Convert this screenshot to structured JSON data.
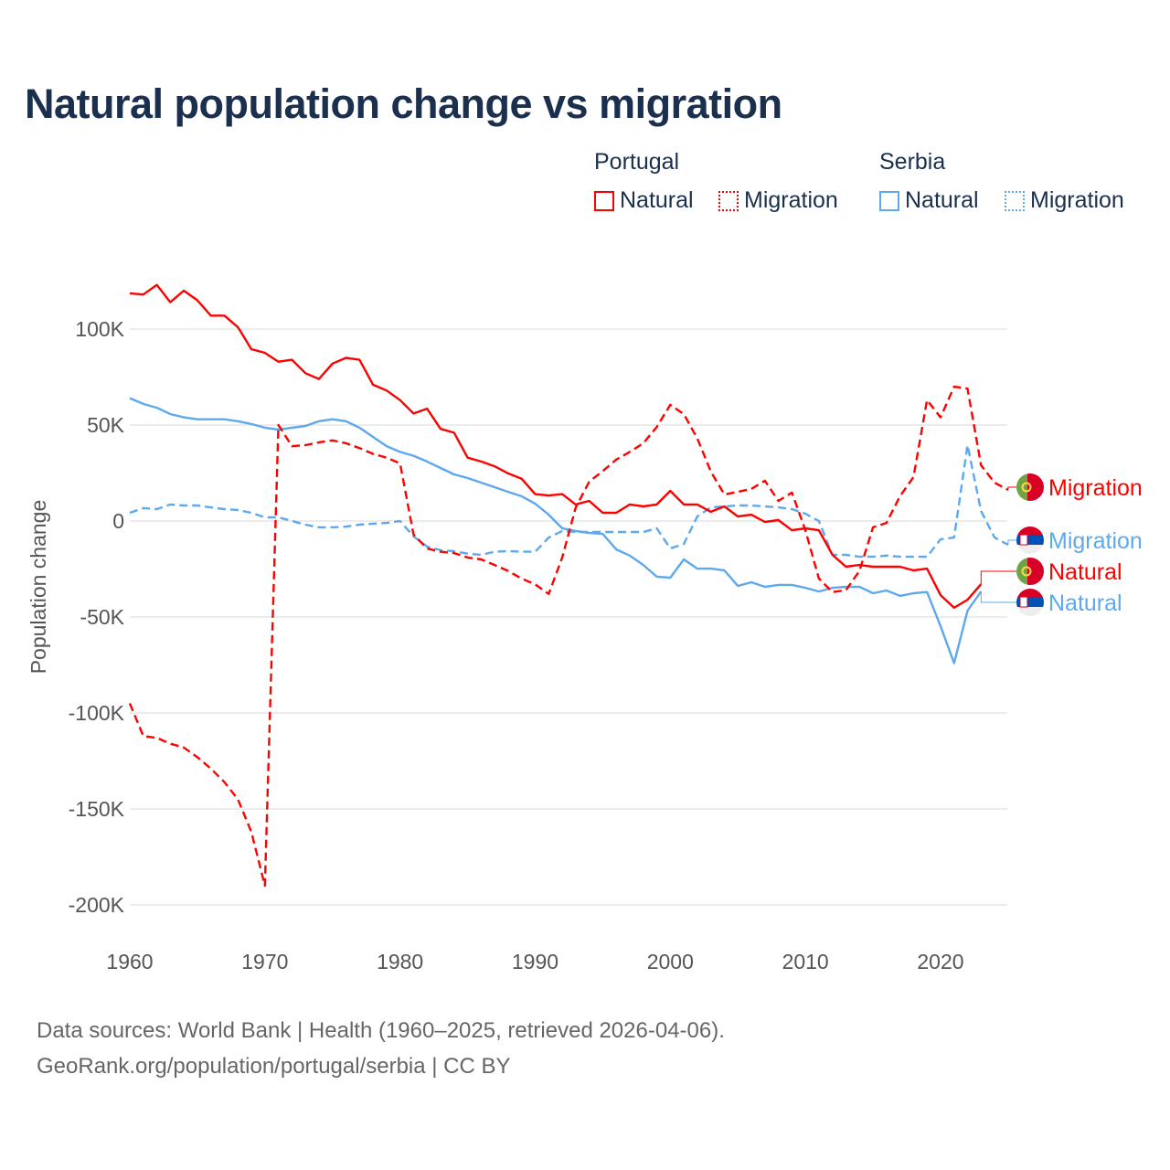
{
  "title": "Natural population change vs migration",
  "legend": {
    "groups": [
      {
        "name": "Portugal",
        "items": [
          {
            "label": "Natural",
            "style": "solid"
          },
          {
            "label": "Migration",
            "style": "dotted"
          }
        ],
        "color": "#ff0000"
      },
      {
        "name": "Serbia",
        "items": [
          {
            "label": "Natural",
            "style": "solid"
          },
          {
            "label": "Migration",
            "style": "dotted"
          }
        ],
        "color": "#5ea8ee"
      }
    ]
  },
  "footer": {
    "line1": "Data sources: World Bank | Health (1960–2025, retrieved 2026-04-06).",
    "line2": "GeoRank.org/population/portugal/serbia | CC BY"
  },
  "chart_data": {
    "type": "line",
    "title": "Natural population change vs migration",
    "xlabel": "",
    "ylabel": "Population change",
    "xlim": [
      1960,
      2025
    ],
    "ylim": [
      -200000,
      100000
    ],
    "grid": true,
    "legend_placement": "top-right",
    "x_ticks": [
      "1960",
      "1970",
      "1980",
      "1990",
      "2000",
      "2010",
      "2020"
    ],
    "y_ticks": [
      {
        "value": 100000,
        "label": "100K"
      },
      {
        "value": 50000,
        "label": "50K"
      },
      {
        "value": 0,
        "label": "0"
      },
      {
        "value": -50000,
        "label": "-50K"
      },
      {
        "value": -100000,
        "label": "-100K"
      },
      {
        "value": -150000,
        "label": "-150K"
      },
      {
        "value": -200000,
        "label": "-200K"
      }
    ],
    "series": [
      {
        "name": "Portugal Natural",
        "end_label": "Natural",
        "country": "portugal",
        "color": "#ff0000",
        "dashed": false,
        "start_year": 1960,
        "values": [
          118600,
          118000,
          123000,
          114000,
          120000,
          115000,
          107000,
          107000,
          101000,
          89500,
          87600,
          83000,
          84000,
          77000,
          74000,
          82000,
          85000,
          84000,
          71000,
          68000,
          63000,
          56000,
          58500,
          48000,
          46000,
          33000,
          31000,
          28500,
          24800,
          22000,
          14000,
          13300,
          14000,
          8600,
          10500,
          4300,
          4300,
          8600,
          7600,
          8600,
          15700,
          8600,
          8600,
          4800,
          7600,
          2400,
          3300,
          -500,
          500,
          -4800,
          -3800,
          -4800,
          -17600,
          -23800,
          -22900,
          -23800,
          -23800,
          -23800,
          -25700,
          -24800,
          -38600,
          -45200,
          -41000,
          -32900
        ]
      },
      {
        "name": "Portugal Migration",
        "end_label": "Migration",
        "country": "portugal",
        "color": "#ff0000",
        "dashed": true,
        "start_year": 1960,
        "values": [
          -95000,
          -112000,
          -113000,
          -116000,
          -118000,
          -123000,
          -129000,
          -136000,
          -145000,
          -162000,
          -190000,
          50000,
          39000,
          39500,
          41000,
          42000,
          40500,
          38000,
          35000,
          33000,
          30000,
          -7000,
          -14300,
          -16000,
          -16700,
          -19000,
          -20000,
          -22900,
          -26000,
          -30000,
          -33000,
          -38000,
          -19000,
          7000,
          20500,
          26000,
          32000,
          36000,
          40500,
          49000,
          60500,
          55700,
          43000,
          25700,
          13800,
          15200,
          16700,
          21000,
          10500,
          14800,
          -4800,
          -30000,
          -37000,
          -36000,
          -26000,
          -3300,
          -1000,
          12900,
          22900,
          63000,
          54000,
          70000,
          69000,
          29000,
          20000,
          16200
        ]
      },
      {
        "name": "Serbia Natural",
        "end_label": "Natural",
        "country": "serbia",
        "color": "#5ea8ee",
        "dashed": false,
        "start_year": 1960,
        "values": [
          64000,
          61000,
          59000,
          55700,
          54000,
          53000,
          53000,
          53000,
          52000,
          50500,
          48600,
          47600,
          48600,
          49500,
          52000,
          53000,
          52000,
          48600,
          43800,
          39000,
          36000,
          34000,
          31000,
          27600,
          24300,
          22400,
          20000,
          17600,
          15200,
          12900,
          9000,
          3300,
          -3800,
          -5200,
          -6200,
          -6700,
          -14800,
          -18000,
          -22900,
          -29000,
          -29500,
          -20000,
          -24800,
          -24800,
          -25700,
          -33800,
          -31900,
          -34300,
          -33300,
          -33300,
          -34800,
          -36700,
          -34800,
          -34300,
          -34300,
          -37600,
          -36200,
          -39000,
          -37600,
          -37000,
          -54800,
          -74000,
          -46700,
          -36700
        ]
      },
      {
        "name": "Serbia Migration",
        "end_label": "Migration",
        "country": "serbia",
        "color": "#5ea8ee",
        "dashed": true,
        "start_year": 1960,
        "values": [
          4300,
          6700,
          6200,
          8600,
          8100,
          8100,
          7100,
          6200,
          5700,
          4300,
          1900,
          1900,
          0,
          -1900,
          -3300,
          -3300,
          -2900,
          -1900,
          -1400,
          -1000,
          0,
          -8000,
          -13300,
          -15200,
          -15700,
          -17000,
          -17600,
          -16000,
          -15700,
          -16000,
          -16000,
          -8600,
          -5200,
          -5700,
          -5700,
          -5700,
          -5700,
          -5700,
          -5700,
          -3800,
          -14300,
          -12000,
          2400,
          7100,
          7600,
          8100,
          8100,
          7600,
          7100,
          6200,
          3800,
          0,
          -17600,
          -17600,
          -18600,
          -18600,
          -18000,
          -18600,
          -18600,
          -18600,
          -9500,
          -8600,
          39500,
          5200,
          -8600,
          -12400
        ]
      }
    ]
  }
}
